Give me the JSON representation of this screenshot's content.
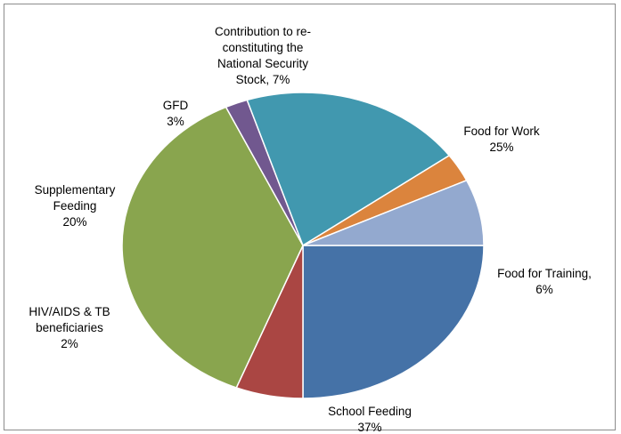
{
  "chart_data": {
    "type": "pie",
    "title": "",
    "slices": [
      {
        "name": "Food for Work",
        "value": 25,
        "label_lines": [
          "Food for Work",
          "25%"
        ],
        "color": "#4572A7"
      },
      {
        "name": "Food for Training",
        "value": 6,
        "label_lines": [
          "Food for Training,",
          "6%"
        ],
        "color": "#AA4643"
      },
      {
        "name": "School Feeding",
        "value": 37,
        "label_lines": [
          "School Feeding",
          "37%"
        ],
        "color": "#89A54E"
      },
      {
        "name": "HIV/AIDS & TB beneficiaries",
        "value": 2,
        "label_lines": [
          "HIV/AIDS & TB",
          "beneficiaries",
          "2%"
        ],
        "color": "#71588F"
      },
      {
        "name": "Supplementary Feeding",
        "value": 20,
        "label_lines": [
          "Supplementary",
          "Feeding",
          "20%"
        ],
        "color": "#4198AF"
      },
      {
        "name": "GFD",
        "value": 3,
        "label_lines": [
          "GFD",
          "3%"
        ],
        "color": "#DB843D"
      },
      {
        "name": "Contribution to re-constituting the National Security Stock",
        "value": 7,
        "label_lines": [
          "Contribution to re-",
          "constituting the",
          "National Security",
          "Stock, 7%"
        ],
        "color": "#93A9CF"
      }
    ]
  }
}
